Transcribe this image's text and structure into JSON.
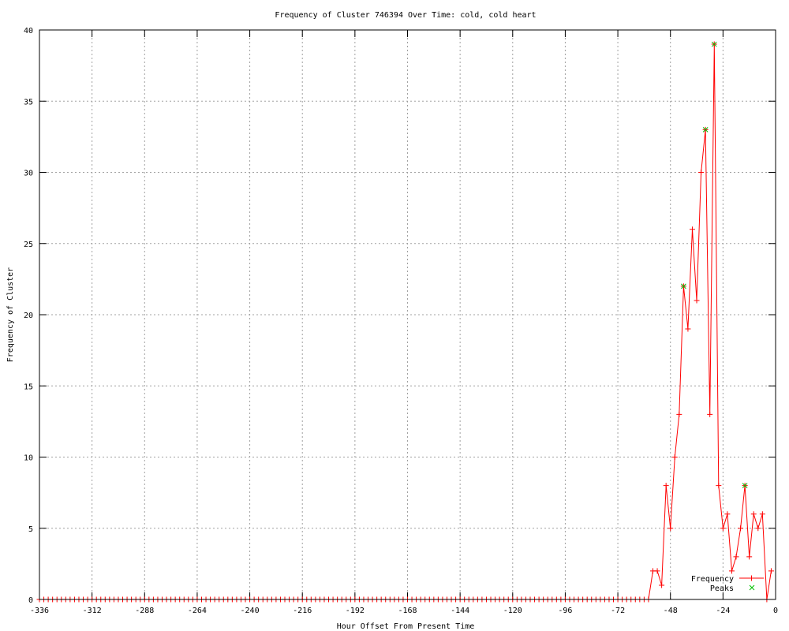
{
  "chart_data": {
    "type": "line",
    "title": "Frequency of Cluster 746394 Over Time: cold, cold heart",
    "xlabel": "Hour Offset From Present Time",
    "ylabel": "Frequency of Cluster",
    "xlim": [
      -336,
      0
    ],
    "ylim": [
      0,
      40
    ],
    "xticks": [
      -336,
      -312,
      -288,
      -264,
      -240,
      -216,
      -192,
      -168,
      -144,
      -120,
      -96,
      -72,
      -48,
      -24,
      0
    ],
    "yticks": [
      0,
      5,
      10,
      15,
      20,
      25,
      30,
      35,
      40
    ],
    "grid": true,
    "legend_position": "bottom-right",
    "colors": {
      "frequency": "#ff0000",
      "peaks": "#00c000",
      "grid": "#a0a0a0"
    },
    "series": [
      {
        "name": "Frequency",
        "style": "linespoints",
        "x": [
          -336,
          -334,
          -332,
          -330,
          -328,
          -326,
          -324,
          -322,
          -320,
          -318,
          -316,
          -314,
          -312,
          -310,
          -308,
          -306,
          -304,
          -302,
          -300,
          -298,
          -296,
          -294,
          -292,
          -290,
          -288,
          -286,
          -284,
          -282,
          -280,
          -278,
          -276,
          -274,
          -272,
          -270,
          -268,
          -266,
          -264,
          -262,
          -260,
          -258,
          -256,
          -254,
          -252,
          -250,
          -248,
          -246,
          -244,
          -242,
          -240,
          -238,
          -236,
          -234,
          -232,
          -230,
          -228,
          -226,
          -224,
          -222,
          -220,
          -218,
          -216,
          -214,
          -212,
          -210,
          -208,
          -206,
          -204,
          -202,
          -200,
          -198,
          -196,
          -194,
          -192,
          -190,
          -188,
          -186,
          -184,
          -182,
          -180,
          -178,
          -176,
          -174,
          -172,
          -170,
          -168,
          -166,
          -164,
          -162,
          -160,
          -158,
          -156,
          -154,
          -152,
          -150,
          -148,
          -146,
          -144,
          -142,
          -140,
          -138,
          -136,
          -134,
          -132,
          -130,
          -128,
          -126,
          -124,
          -122,
          -120,
          -118,
          -116,
          -114,
          -112,
          -110,
          -108,
          -106,
          -104,
          -102,
          -100,
          -98,
          -96,
          -94,
          -92,
          -90,
          -88,
          -86,
          -84,
          -82,
          -80,
          -78,
          -76,
          -74,
          -72,
          -70,
          -68,
          -66,
          -64,
          -62,
          -60,
          -58,
          -56,
          -54,
          -52,
          -50,
          -48,
          -46,
          -44,
          -42,
          -40,
          -38,
          -36,
          -34,
          -32,
          -30,
          -28,
          -26,
          -24,
          -22,
          -20,
          -18,
          -16,
          -14,
          -12,
          -10,
          -8,
          -6,
          -4,
          -2
        ],
        "y": [
          0,
          0,
          0,
          0,
          0,
          0,
          0,
          0,
          0,
          0,
          0,
          0,
          0,
          0,
          0,
          0,
          0,
          0,
          0,
          0,
          0,
          0,
          0,
          0,
          0,
          0,
          0,
          0,
          0,
          0,
          0,
          0,
          0,
          0,
          0,
          0,
          0,
          0,
          0,
          0,
          0,
          0,
          0,
          0,
          0,
          0,
          0,
          0,
          0,
          0,
          0,
          0,
          0,
          0,
          0,
          0,
          0,
          0,
          0,
          0,
          0,
          0,
          0,
          0,
          0,
          0,
          0,
          0,
          0,
          0,
          0,
          0,
          0,
          0,
          0,
          0,
          0,
          0,
          0,
          0,
          0,
          0,
          0,
          0,
          0,
          0,
          0,
          0,
          0,
          0,
          0,
          0,
          0,
          0,
          0,
          0,
          0,
          0,
          0,
          0,
          0,
          0,
          0,
          0,
          0,
          0,
          0,
          0,
          0,
          0,
          0,
          0,
          0,
          0,
          0,
          0,
          0,
          0,
          0,
          0,
          0,
          0,
          0,
          0,
          0,
          0,
          0,
          0,
          0,
          0,
          0,
          0,
          0,
          0,
          0,
          0,
          0,
          0,
          0,
          0,
          2,
          2,
          1,
          8,
          5,
          10,
          13,
          22,
          19,
          26,
          21,
          30,
          33,
          13,
          39,
          8,
          5,
          6,
          2,
          3,
          5,
          8,
          3,
          6,
          5,
          6,
          0,
          2
        ]
      },
      {
        "name": "Peaks",
        "style": "points",
        "x": [
          -42,
          -32,
          -28,
          -14
        ],
        "y": [
          22,
          33,
          39,
          8
        ]
      }
    ]
  }
}
